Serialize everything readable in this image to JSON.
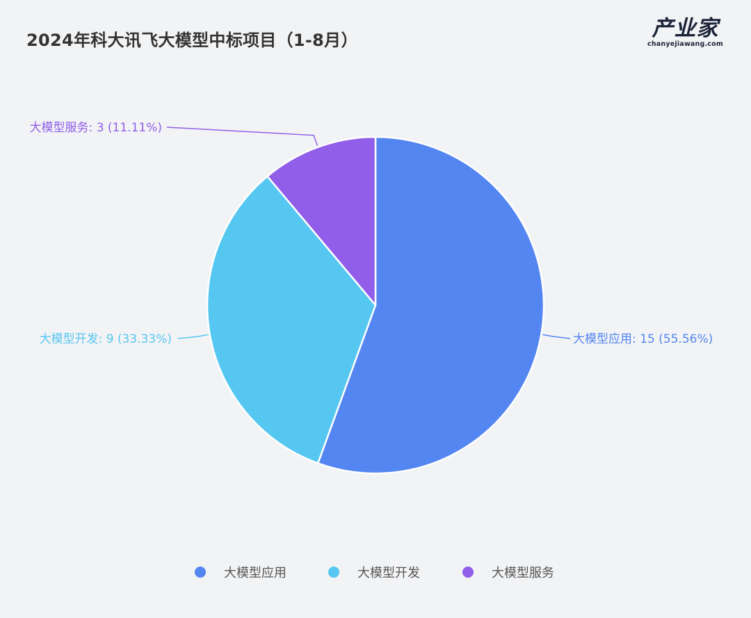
{
  "header": {
    "title": "2024年科大讯飞大模型中标项目（1-8月）"
  },
  "brand": {
    "name": "产业家",
    "url_text": "chanyejiawang.com"
  },
  "chart_data": {
    "type": "pie",
    "title": "2024年科大讯飞大模型中标项目（1-8月）",
    "labels": [
      "大模型应用",
      "大模型开发",
      "大模型服务"
    ],
    "values": [
      15,
      9,
      3
    ],
    "percentages": [
      "55.56%",
      "33.33%",
      "11.11%"
    ],
    "slice_labels": [
      "大模型应用: 15 (55.56%)",
      "大模型开发: 9 (33.33%)",
      "大模型服务: 3 (11.11%)"
    ],
    "colors": [
      "#5486f2",
      "#56c7f1",
      "#905ee8"
    ],
    "legend_position": "bottom"
  }
}
